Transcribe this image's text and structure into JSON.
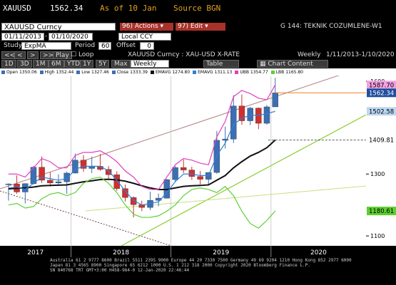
{
  "header": {
    "ticker": "XAUUSD",
    "as_of": "As of 10 Jan",
    "source": "Source BGN"
  },
  "toolbar": {
    "security": "XAUUSD Curncy",
    "actions": "96) Actions ▾",
    "edit": "97) Edit ▾",
    "page": "G 144: TEKNIK COZUMLENE-W1",
    "start": "01/11/2013",
    "end": "01/10/2020",
    "currency": "Local CCY",
    "study_label": "Study",
    "study": "ExpMA",
    "period_label": "Period",
    "period": "60",
    "offset_label": "Offset",
    "offset": "0",
    "nav": [
      "<<",
      "<",
      ">",
      ">>",
      "Play"
    ],
    "loop": "Loop",
    "frequency": "Weekly",
    "range": "1/11/2013-1/10/2020",
    "periods": [
      "1D",
      "3D",
      "1M",
      "6M",
      "YTD",
      "1Y",
      "5Y",
      "Max"
    ],
    "period_select": "Weekly",
    "table": "Table",
    "chart_content": "Chart Content"
  },
  "legend": [
    {
      "name": "Open",
      "value": "1350.06",
      "color": "#3b6fb5"
    },
    {
      "name": "High",
      "value": "1352.44",
      "color": "#3b6fb5"
    },
    {
      "name": "Low",
      "value": "1327.46",
      "color": "#3b6fb5"
    },
    {
      "name": "Close",
      "value": "1333.39",
      "color": "#3b6fb5"
    },
    {
      "name": "EMAVG",
      "value": "1274.80",
      "color": "#111111"
    },
    {
      "name": "EMAVG",
      "value": "1311.13",
      "color": "#2f7fd6"
    },
    {
      "name": "UBB",
      "value": "1354.77",
      "color": "#e040c0"
    },
    {
      "name": "LBB",
      "value": "1165.80",
      "color": "#5ccf30"
    }
  ],
  "chart_data": {
    "type": "candlestick",
    "title": "XAUUSD Curncy : XAU-USD X-RATE",
    "up_color": "#3b6fb5",
    "down_color": "#d03030",
    "last_color": "#f08020",
    "x": [
      2017.375,
      2017.458,
      2017.542,
      2017.625,
      2017.708,
      2017.792,
      2017.875,
      2017.958,
      2018.042,
      2018.125,
      2018.208,
      2018.292,
      2018.375,
      2018.458,
      2018.542,
      2018.625,
      2018.708,
      2018.792,
      2018.875,
      2018.958,
      2019.042,
      2019.125,
      2019.208,
      2019.292,
      2019.375,
      2019.458,
      2019.542,
      2019.625,
      2019.708,
      2019.792,
      2019.875,
      2019.958,
      2020.042
    ],
    "open": [
      1268,
      1268,
      1242,
      1269,
      1322,
      1280,
      1271,
      1275,
      1303,
      1345,
      1318,
      1325,
      1315,
      1298,
      1253,
      1224,
      1201,
      1192,
      1215,
      1222,
      1282,
      1321,
      1313,
      1292,
      1283,
      1305,
      1409,
      1413,
      1520,
      1472,
      1513,
      1464,
      1517
    ],
    "high": [
      1270,
      1296,
      1270,
      1326,
      1357,
      1306,
      1299,
      1308,
      1366,
      1361,
      1356,
      1365,
      1326,
      1309,
      1266,
      1228,
      1214,
      1243,
      1237,
      1284,
      1326,
      1347,
      1324,
      1310,
      1306,
      1439,
      1453,
      1555,
      1557,
      1517,
      1515,
      1523,
      1611
    ],
    "low": [
      1214,
      1236,
      1205,
      1266,
      1271,
      1260,
      1264,
      1236,
      1302,
      1307,
      1303,
      1310,
      1281,
      1246,
      1211,
      1160,
      1180,
      1183,
      1196,
      1221,
      1276,
      1303,
      1281,
      1266,
      1266,
      1301,
      1382,
      1400,
      1459,
      1458,
      1445,
      1459,
      1517
    ],
    "close": [
      1268,
      1242,
      1269,
      1322,
      1280,
      1271,
      1275,
      1303,
      1345,
      1318,
      1325,
      1315,
      1298,
      1253,
      1224,
      1201,
      1192,
      1215,
      1222,
      1282,
      1321,
      1313,
      1292,
      1283,
      1305,
      1409,
      1413,
      1520,
      1472,
      1513,
      1464,
      1517,
      1562.34
    ],
    "series": [
      {
        "name": "EMAVG",
        "color": "#111111",
        "width": 2,
        "tag_bg": "#ffffff",
        "tag_fg": "#000000",
        "values": [
          1252,
          1254,
          1255,
          1258,
          1262,
          1263,
          1264,
          1265,
          1270,
          1275,
          1278,
          1282,
          1283,
          1281,
          1277,
          1270,
          1262,
          1255,
          1250,
          1250,
          1255,
          1260,
          1262,
          1263,
          1265,
          1280,
          1295,
          1320,
          1340,
          1358,
          1370,
          1385,
          1409.81
        ]
      },
      {
        "name": "EMAVG",
        "color": "#2f7fd6",
        "width": 1.2,
        "tag_bg": "#bcd8f2",
        "tag_fg": "#000000",
        "values": [
          1255,
          1258,
          1250,
          1270,
          1290,
          1285,
          1280,
          1285,
          1315,
          1325,
          1325,
          1325,
          1310,
          1280,
          1245,
          1215,
          1200,
          1205,
          1210,
          1240,
          1275,
          1300,
          1300,
          1295,
          1295,
          1360,
          1400,
          1460,
          1480,
          1490,
          1490,
          1495,
          1502.58
        ]
      },
      {
        "name": "UBB",
        "color": "#e040c0",
        "width": 1.2,
        "tag_bg": "#f0a0e0",
        "tag_fg": "#000000",
        "values": [
          1300,
          1300,
          1290,
          1320,
          1350,
          1340,
          1320,
          1320,
          1360,
          1370,
          1370,
          1375,
          1360,
          1340,
          1310,
          1290,
          1260,
          1250,
          1250,
          1290,
          1330,
          1350,
          1345,
          1335,
          1330,
          1420,
          1470,
          1550,
          1570,
          1560,
          1545,
          1540,
          1587.7
        ],
        "value_labels": [
          null,
          null,
          null,
          null,
          null,
          null,
          null,
          null,
          null,
          null,
          null,
          null,
          null,
          null,
          null,
          null,
          null,
          null,
          null,
          null,
          null,
          null,
          null,
          null,
          null,
          null,
          null,
          null,
          null,
          null,
          null,
          null,
          "1587.70"
        ]
      },
      {
        "name": "LBB",
        "color": "#5ccf30",
        "width": 1.2,
        "tag_bg": "#5ccf30",
        "tag_fg": "#000000",
        "values": [
          1200,
          1205,
          1190,
          1195,
          1220,
          1235,
          1240,
          1230,
          1240,
          1270,
          1285,
          1290,
          1270,
          1240,
          1200,
          1170,
          1160,
          1160,
          1165,
          1180,
          1200,
          1230,
          1250,
          1255,
          1250,
          1240,
          1260,
          1230,
          1180,
          1140,
          1125,
          1150,
          1180.61
        ]
      }
    ],
    "xlim": [
      2017.29,
      2020.95
    ],
    "ylim": [
      1068,
      1616
    ],
    "yticks": [
      1100,
      1300,
      1600
    ],
    "years": [
      2017,
      2018,
      2019,
      2020
    ]
  },
  "footer": [
    "Australia 61 2 9777 8600 Brazil 5511 2395 9000 Europe 44 20 7330 7500 Germany 49 69 9204 1210 Hong Kong 852 2977 6000",
    "Japan 81 3 4565 8900       Singapore 65 6212 1000       U.S. 1 212 318 2000        Copyright 2020 Bloomberg Finance L.P.",
    "SN 840768 TRT  GMT+3:00 H458-964-0 12-Jan-2020 22:46:44"
  ]
}
